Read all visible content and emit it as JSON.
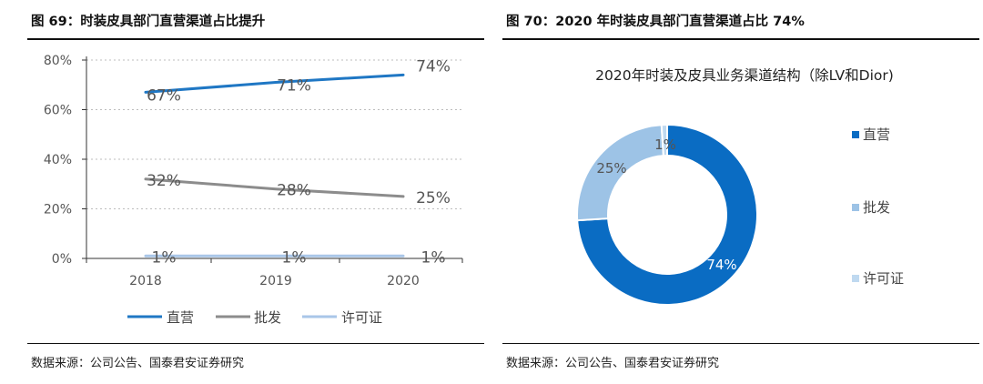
{
  "left": {
    "fig_title": "图 69：时装皮具部门直营渠道占比提升",
    "source": "数据来源：公司公告、国泰君安证券研究"
  },
  "right": {
    "fig_title": "图 70：2020 年时装皮具部门直营渠道占比 74%",
    "source": "数据来源：公司公告、国泰君安证券研究"
  },
  "chart_data": [
    {
      "type": "line",
      "title": "",
      "categories": [
        "2018",
        "2019",
        "2020"
      ],
      "ylim": [
        0,
        80
      ],
      "yticks": [
        "0%",
        "20%",
        "40%",
        "60%",
        "80%"
      ],
      "grid": true,
      "legend_position": "bottom",
      "series": [
        {
          "name": "直营",
          "values": [
            67,
            71,
            74
          ],
          "labels": [
            "67%",
            "71%",
            "74%"
          ],
          "color": "#1f77c4"
        },
        {
          "name": "批发",
          "values": [
            32,
            28,
            25
          ],
          "labels": [
            "32%",
            "28%",
            "25%"
          ],
          "color": "#8c8c8c"
        },
        {
          "name": "许可证",
          "values": [
            1,
            1,
            1
          ],
          "labels": [
            "1%",
            "1%",
            "1%"
          ],
          "color": "#a9c6e8"
        }
      ]
    },
    {
      "type": "pie",
      "variant": "donut",
      "title": "2020年时装及皮具业务渠道结构（除LV和Dior)",
      "legend_position": "right",
      "slices": [
        {
          "name": "直营",
          "value": 74,
          "label": "74%",
          "color": "#0a6cc3"
        },
        {
          "name": "批发",
          "value": 25,
          "label": "25%",
          "color": "#9dc3e6"
        },
        {
          "name": "许可证",
          "value": 1,
          "label": "1%",
          "color": "#bfd9f0"
        }
      ]
    }
  ]
}
